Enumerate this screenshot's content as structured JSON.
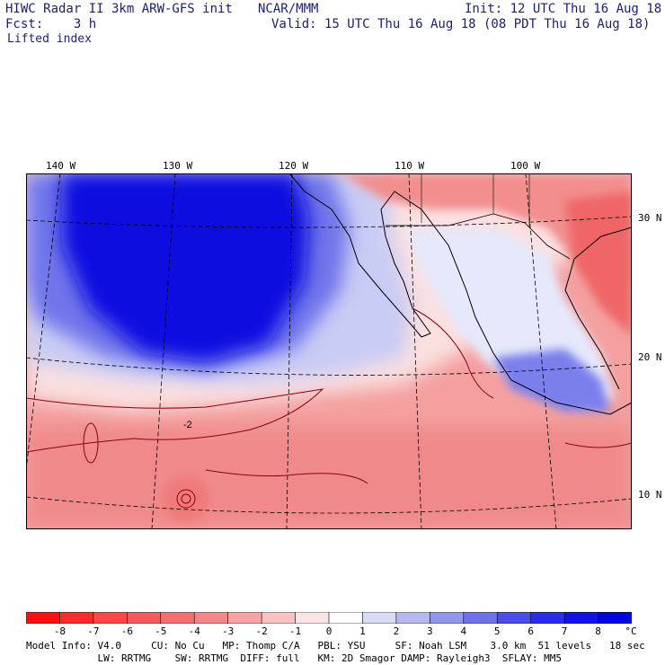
{
  "header": {
    "title": "HIWC Radar II 3km ARW-GFS init",
    "org": "NCAR/MMM",
    "init": "Init: 12 UTC Thu 16 Aug 18",
    "fcst": "Fcst:    3 h",
    "valid": "Valid: 15 UTC Thu 16 Aug 18 (08 PDT Thu 16 Aug 18)",
    "field": "Lifted index"
  },
  "map": {
    "lon_labels": [
      "140 W",
      "130 W",
      "120 W",
      "110 W",
      "100 W"
    ],
    "lat_labels": [
      "30 N",
      "20 N",
      "10 N"
    ],
    "center_low_value": "-2"
  },
  "colorbar": {
    "labels": [
      "-8",
      "-7",
      "-6",
      "-5",
      "-4",
      "-3",
      "-2",
      "-1",
      "0",
      "1",
      "2",
      "3",
      "4",
      "5",
      "6",
      "7",
      "8"
    ],
    "unit": "°C",
    "colors": [
      "#ff1010",
      "#ff2c2c",
      "#ff4848",
      "#f45c5c",
      "#f47070",
      "#f48888",
      "#f4a4a4",
      "#f8c2c2",
      "#fde4e4",
      "#ffffff",
      "#d8daf6",
      "#b6b9f0",
      "#9396ec",
      "#6f72e8",
      "#4a4ee6",
      "#2a2ee8",
      "#1014e4",
      "#0004dc"
    ]
  },
  "footer": {
    "line1": "Model Info: V4.0     CU: No Cu   MP: Thomp C/A   PBL: YSU     SF: Noah LSM    3.0 km  51 levels   18 sec",
    "line2": "            LW: RRTMG    SW: RRTMG  DIFF: full   KM: 2D Smagor DAMP: Rayleigh3  SFLAY: MM5"
  }
}
